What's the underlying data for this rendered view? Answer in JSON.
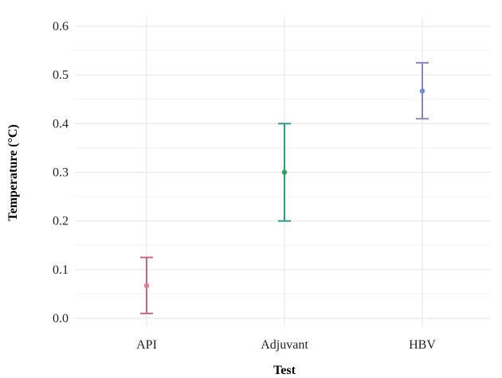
{
  "chart_data": {
    "type": "errorbar",
    "xlabel": "Test",
    "ylabel": "Temperature (°C)",
    "ylim": [
      0,
      0.6
    ],
    "yticks": [
      0.0,
      0.1,
      0.2,
      0.3,
      0.4,
      0.5,
      0.6
    ],
    "ytick_labels": [
      "0.0",
      "0.1",
      "0.2",
      "0.3",
      "0.4",
      "0.5",
      "0.6"
    ],
    "grid": true,
    "points": [
      {
        "category": "API",
        "value": 0.067,
        "lower": 0.01,
        "upper": 0.125,
        "point_color": "#e07a8c",
        "bar_color": "#c4687d"
      },
      {
        "category": "Adjuvant",
        "value": 0.3,
        "lower": 0.2,
        "upper": 0.4,
        "point_color": "#2ca25f",
        "bar_color": "#2a9a8e"
      },
      {
        "category": "HBV",
        "value": 0.467,
        "lower": 0.41,
        "upper": 0.525,
        "point_color": "#6a8fd8",
        "bar_color": "#8a86c2"
      }
    ]
  }
}
